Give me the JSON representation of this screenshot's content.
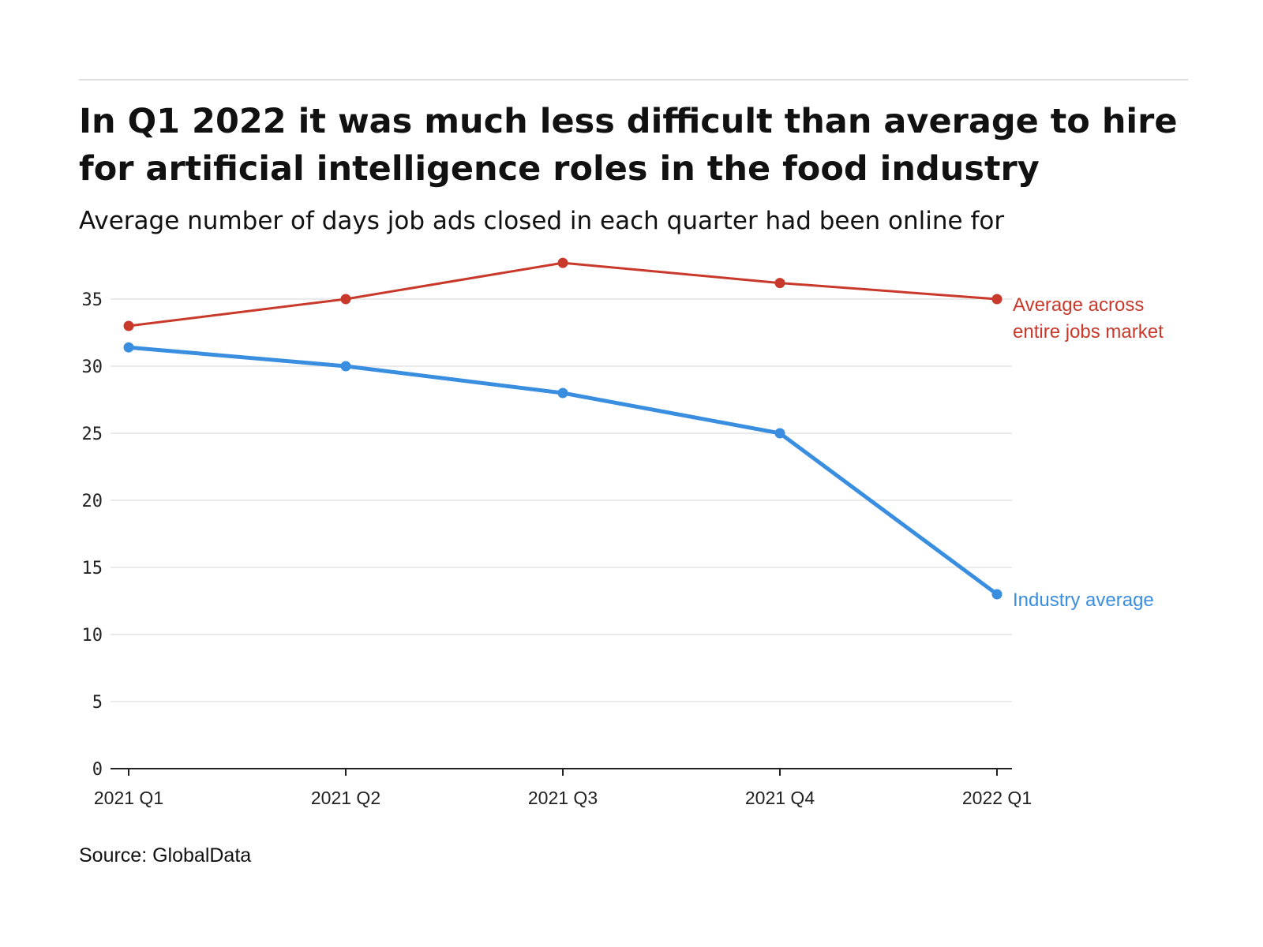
{
  "header": {
    "title": "In Q1 2022 it was much less difficult than average to hire for artificial intelligence roles in the food industry",
    "subtitle": "Average number of days job ads closed in each quarter had been online for"
  },
  "footer": {
    "source": "Source: GlobalData"
  },
  "chart_data": {
    "type": "line",
    "title": "In Q1 2022 it was much less difficult than average to hire for artificial intelligence roles in the food industry",
    "subtitle": "Average number of days job ads closed in each quarter had been online for",
    "xlabel": "",
    "ylabel": "",
    "categories": [
      "2021 Q1",
      "2021 Q2",
      "2021 Q3",
      "2021 Q4",
      "2022 Q1"
    ],
    "ylim": [
      0,
      35
    ],
    "yticks": [
      0,
      5,
      10,
      15,
      20,
      25,
      30,
      35
    ],
    "grid": true,
    "legend": "direct labels at line ends",
    "series": [
      {
        "name": "Average across entire jobs market",
        "label_lines": [
          "Average across",
          "entire jobs market"
        ],
        "color": "#c8392b",
        "values": [
          33,
          35,
          37.7,
          36.2,
          35
        ]
      },
      {
        "name": "Industry average",
        "label_lines": [
          "Industry average"
        ],
        "color": "#3a8ee0",
        "values": [
          31.4,
          30,
          28,
          25,
          13
        ]
      }
    ]
  }
}
